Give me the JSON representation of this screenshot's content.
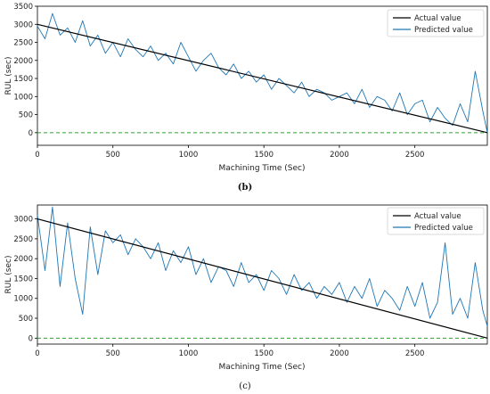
{
  "chart_data": [
    {
      "type": "line",
      "panel_label": "(b)",
      "xlabel": "Machining Time (Sec)",
      "ylabel": "RUL (sec)",
      "xlim": [
        0,
        2980
      ],
      "ylim": [
        -350,
        3500
      ],
      "x_ticks": [
        "0",
        "500",
        "1000",
        "1500",
        "2000",
        "2500"
      ],
      "y_ticks": [
        "0",
        "500",
        "1000",
        "1500",
        "2000",
        "2500",
        "3000",
        "3500"
      ],
      "legend_position": "top-right",
      "zero_line": {
        "y": 0,
        "color": "#2ca02c",
        "style": "dashed"
      },
      "series": [
        {
          "name": "Actual value",
          "color": "#000000",
          "x": [
            0,
            2980
          ],
          "y": [
            3000,
            0
          ]
        },
        {
          "name": "Predicted value",
          "color": "#1f77b4",
          "x": [
            0,
            50,
            100,
            150,
            200,
            250,
            300,
            350,
            400,
            450,
            500,
            550,
            600,
            650,
            700,
            750,
            800,
            850,
            900,
            950,
            1000,
            1050,
            1100,
            1150,
            1200,
            1250,
            1300,
            1350,
            1400,
            1450,
            1500,
            1550,
            1600,
            1650,
            1700,
            1750,
            1800,
            1850,
            1900,
            1950,
            2000,
            2050,
            2100,
            2150,
            2200,
            2250,
            2300,
            2350,
            2400,
            2450,
            2500,
            2550,
            2600,
            2650,
            2700,
            2750,
            2800,
            2850,
            2900,
            2950,
            2980
          ],
          "y": [
            2950,
            2600,
            3300,
            2700,
            2900,
            2500,
            3100,
            2400,
            2700,
            2200,
            2500,
            2100,
            2600,
            2300,
            2100,
            2400,
            2000,
            2200,
            1900,
            2500,
            2100,
            1700,
            2000,
            2200,
            1800,
            1600,
            1900,
            1500,
            1700,
            1400,
            1600,
            1200,
            1500,
            1300,
            1100,
            1400,
            1000,
            1200,
            1100,
            900,
            1000,
            1100,
            800,
            1200,
            700,
            1000,
            900,
            600,
            1100,
            500,
            800,
            900,
            300,
            700,
            400,
            200,
            800,
            300,
            1700,
            600,
            0
          ]
        }
      ]
    },
    {
      "type": "line",
      "panel_label": "(c)",
      "xlabel": "Machining Time (Sec)",
      "ylabel": "RUL (sec)",
      "xlim": [
        0,
        2980
      ],
      "ylim": [
        -150,
        3350
      ],
      "x_ticks": [
        "0",
        "500",
        "1000",
        "1500",
        "2000",
        "2500"
      ],
      "y_ticks": [
        "0",
        "500",
        "1000",
        "1500",
        "2000",
        "2500",
        "3000"
      ],
      "legend_position": "top-right",
      "zero_line": {
        "y": 0,
        "color": "#2ca02c",
        "style": "dashed"
      },
      "series": [
        {
          "name": "Actual value",
          "color": "#000000",
          "x": [
            0,
            2980
          ],
          "y": [
            3000,
            0
          ]
        },
        {
          "name": "Predicted value",
          "color": "#1f77b4",
          "x": [
            0,
            50,
            100,
            150,
            200,
            250,
            300,
            350,
            400,
            450,
            500,
            550,
            600,
            650,
            700,
            750,
            800,
            850,
            900,
            950,
            1000,
            1050,
            1100,
            1150,
            1200,
            1250,
            1300,
            1350,
            1400,
            1450,
            1500,
            1550,
            1600,
            1650,
            1700,
            1750,
            1800,
            1850,
            1900,
            1950,
            2000,
            2050,
            2100,
            2150,
            2200,
            2250,
            2300,
            2350,
            2400,
            2450,
            2500,
            2550,
            2600,
            2650,
            2700,
            2750,
            2800,
            2850,
            2900,
            2950,
            2980
          ],
          "y": [
            3100,
            1700,
            3300,
            1300,
            2900,
            1500,
            600,
            2800,
            1600,
            2700,
            2400,
            2600,
            2100,
            2500,
            2300,
            2000,
            2400,
            1700,
            2200,
            1900,
            2300,
            1600,
            2000,
            1400,
            1800,
            1700,
            1300,
            1900,
            1400,
            1600,
            1200,
            1700,
            1500,
            1100,
            1600,
            1200,
            1400,
            1000,
            1300,
            1100,
            1400,
            900,
            1300,
            1000,
            1500,
            800,
            1200,
            1000,
            700,
            1300,
            800,
            1400,
            500,
            900,
            2400,
            600,
            1000,
            500,
            1900,
            700,
            300
          ]
        }
      ]
    }
  ]
}
